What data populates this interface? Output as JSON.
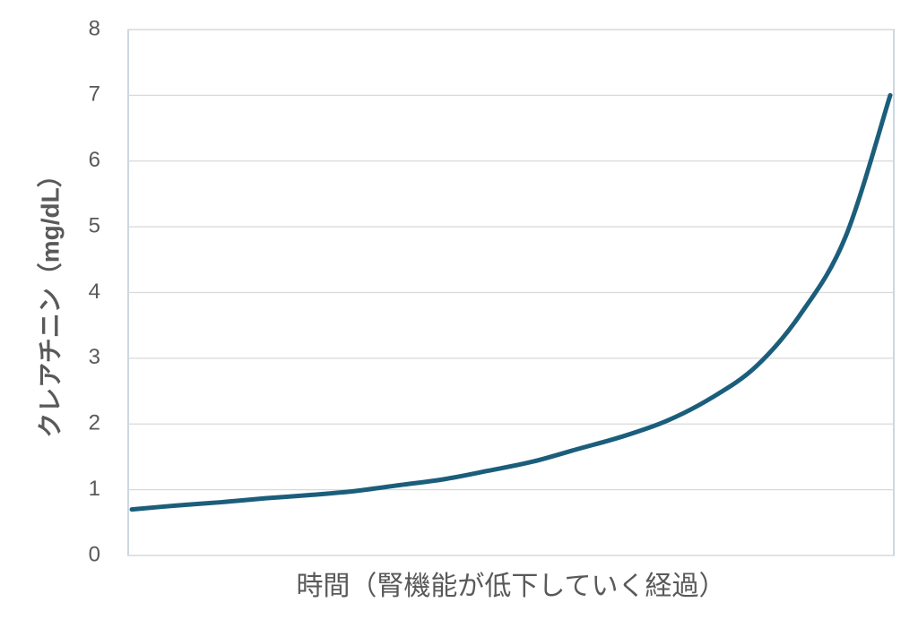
{
  "chart_data": {
    "type": "line",
    "x_label": "時間（腎機能が低下していく経過）",
    "y_label": "クレアチニン（mg/dL）",
    "categories": [
      null,
      null,
      null,
      null,
      null,
      null,
      null,
      null,
      null,
      null,
      null,
      null,
      null,
      null,
      null,
      null,
      null,
      null
    ],
    "series": [
      {
        "name": null,
        "color": "#1b5e7b",
        "values": [
          0.7,
          0.76,
          0.81,
          0.87,
          0.92,
          0.98,
          1.07,
          1.16,
          1.29,
          1.43,
          1.62,
          1.81,
          2.05,
          2.4,
          2.88,
          3.68,
          4.85,
          7.0
        ]
      }
    ],
    "ylim": [
      0,
      8
    ],
    "yticks": [
      0,
      1,
      2,
      3,
      4,
      5,
      6,
      7,
      8
    ],
    "grid": true
  }
}
